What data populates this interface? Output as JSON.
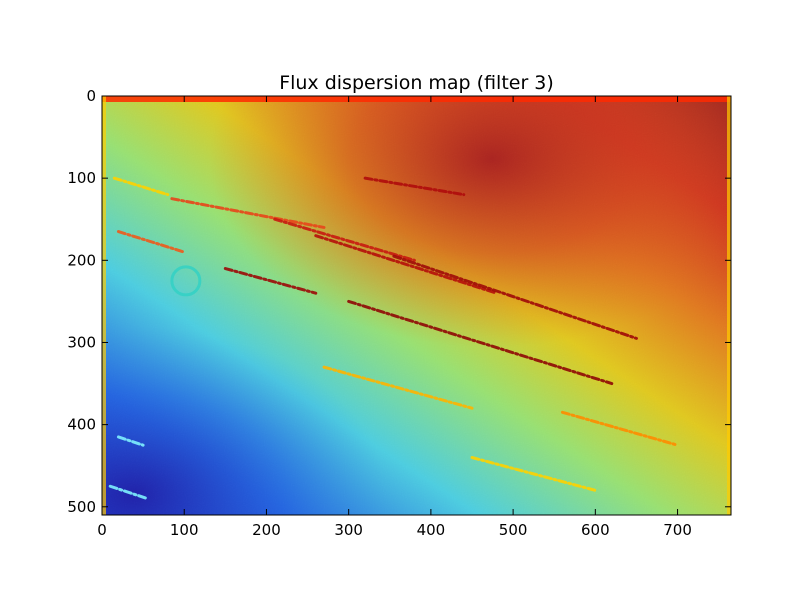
{
  "chart_data": {
    "type": "heatmap",
    "title": "Flux dispersion map (filter 3)",
    "xlabel": "",
    "ylabel": "",
    "xlim": [
      0,
      765
    ],
    "ylim": [
      510,
      0
    ],
    "x_ticks": [
      0,
      100,
      200,
      300,
      400,
      500,
      600,
      700
    ],
    "y_ticks": [
      0,
      100,
      200,
      300,
      400,
      500
    ],
    "colormap": "jet",
    "colorbar": false,
    "grid": false,
    "description_regions": [
      {
        "region": "upper-right",
        "level": "high"
      },
      {
        "region": "lower-left",
        "level": "low"
      }
    ],
    "streaks": [
      {
        "x1": 85,
        "y1": 125,
        "x2": 270,
        "y2": 160,
        "color": "#e8461a"
      },
      {
        "x1": 210,
        "y1": 150,
        "x2": 380,
        "y2": 200,
        "color": "#c81a10"
      },
      {
        "x1": 260,
        "y1": 170,
        "x2": 480,
        "y2": 240,
        "color": "#b50f0a"
      },
      {
        "x1": 355,
        "y1": 195,
        "x2": 650,
        "y2": 295,
        "color": "#a00a08"
      },
      {
        "x1": 320,
        "y1": 100,
        "x2": 440,
        "y2": 120,
        "color": "#b00c0c"
      },
      {
        "x1": 300,
        "y1": 250,
        "x2": 620,
        "y2": 350,
        "color": "#8f0806"
      },
      {
        "x1": 150,
        "y1": 210,
        "x2": 260,
        "y2": 240,
        "color": "#9c0a08"
      },
      {
        "x1": 20,
        "y1": 165,
        "x2": 100,
        "y2": 190,
        "color": "#ee5a1c"
      },
      {
        "x1": 270,
        "y1": 330,
        "x2": 450,
        "y2": 380,
        "color": "#ffb400"
      },
      {
        "x1": 560,
        "y1": 385,
        "x2": 700,
        "y2": 425,
        "color": "#ff8c00"
      },
      {
        "x1": 450,
        "y1": 440,
        "x2": 600,
        "y2": 480,
        "color": "#ffd200"
      },
      {
        "x1": 20,
        "y1": 415,
        "x2": 50,
        "y2": 425,
        "color": "#7ff1ff"
      },
      {
        "x1": 10,
        "y1": 475,
        "x2": 55,
        "y2": 490,
        "color": "#7ff1ff"
      },
      {
        "x1": 15,
        "y1": 100,
        "x2": 80,
        "y2": 120,
        "color": "#ffd200"
      }
    ]
  }
}
